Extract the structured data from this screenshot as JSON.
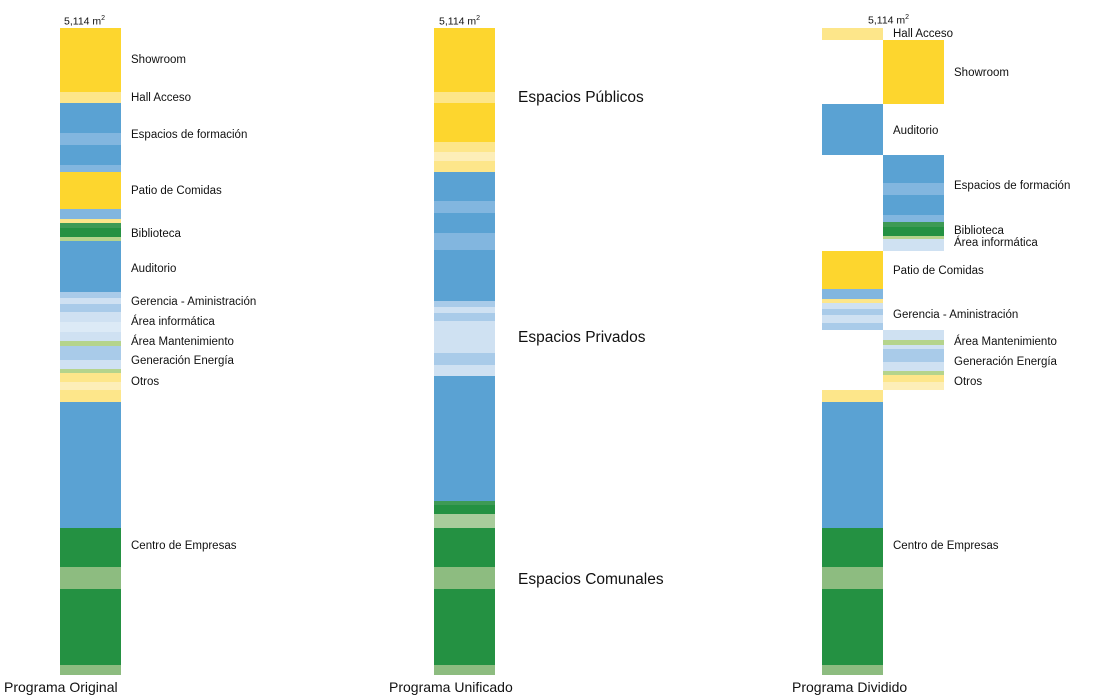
{
  "colors": {
    "yellow": "#fdd62e",
    "light-yellow": "#fde68a",
    "pale-yellow": "#fdeeb8",
    "blue": "#5aa2d3",
    "mid-blue": "#82b6df",
    "light-blue": "#a9cbe9",
    "pale-blue": "#cfe1f2",
    "green": "#249142",
    "mid-green": "#3d9a55",
    "light-green": "#8dbc80",
    "pale-green": "#a8cc9b",
    "lime": "#b5d48c"
  },
  "area": {
    "value": "5,114 m",
    "unit_sup": "2"
  },
  "columns": {
    "original": {
      "title": "Programa Original",
      "labels": [
        "Showroom",
        "Hall Acceso",
        "Espacios de formación",
        "Patio de Comidas",
        "Biblioteca",
        "Auditorio",
        "Gerencia - Aministración",
        "Área informática",
        "Área Mantenimiento",
        "Generación Energía",
        "Otros",
        "Centro de Empresas"
      ]
    },
    "unified": {
      "title": "Programa Unificado",
      "labels": [
        "Espacios Públicos",
        "Espacios Privados",
        "Espacios Comunales"
      ]
    },
    "divided": {
      "title": "Programa Dividido",
      "labels": [
        "Hall Acceso",
        "Showroom",
        "Auditorio",
        "Espacios de formación",
        "Biblioteca",
        "Área informática",
        "Patio de Comidas",
        "Gerencia - Aministración",
        "Área Mantenimiento",
        "Generación Energía",
        "Otros",
        "Centro de Empresas"
      ]
    }
  }
}
